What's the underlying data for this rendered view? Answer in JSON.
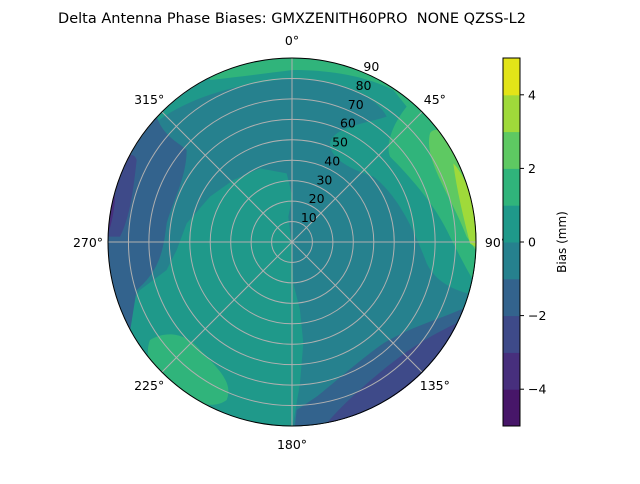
{
  "chart_data": {
    "type": "contourf-polar",
    "title": "Delta Antenna Phase Biases: GMXZENITH60PRO  NONE QZSS-L2",
    "theta_zero": "N",
    "theta_direction": "clockwise",
    "theta_ticks": [
      "0°",
      "45°",
      "90°",
      "135°",
      "180°",
      "225°",
      "270°",
      "315°"
    ],
    "theta_values": [
      0,
      45,
      90,
      135,
      180,
      225,
      270,
      315
    ],
    "r_ticks": [
      "10",
      "20",
      "30",
      "40",
      "50",
      "60",
      "70",
      "80",
      "90"
    ],
    "r_values": [
      10,
      20,
      30,
      40,
      50,
      60,
      70,
      80,
      90
    ],
    "rlim": [
      0,
      90
    ],
    "grid": true,
    "levels": [
      -5,
      -4,
      -3,
      -2,
      -1,
      0,
      1,
      2,
      3,
      4,
      5
    ],
    "colormap": "viridis",
    "level_colors": [
      "#471669",
      "#472f7d",
      "#3e4a89",
      "#33638d",
      "#26818e",
      "#1f998a",
      "#30b47b",
      "#5ec962",
      "#9fda3a",
      "#e3e418"
    ],
    "colorbar": {
      "label": "Bias (mm)",
      "ticks": [
        "−4",
        "−2",
        "0",
        "2",
        "4"
      ],
      "tick_values": [
        -4,
        -2,
        0,
        2,
        4
      ],
      "range": [
        -5,
        5
      ],
      "placement": "right"
    }
  }
}
